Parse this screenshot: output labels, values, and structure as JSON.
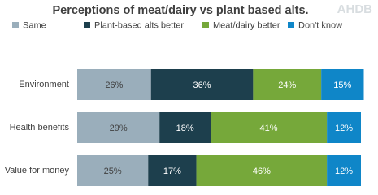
{
  "logo": "AHDB",
  "chart_data": {
    "type": "stacked-bar",
    "orientation": "horizontal",
    "title": "Perceptions of meat/dairy vs plant based alts.",
    "categories": [
      "Environment",
      "Health benefits",
      "Value for money"
    ],
    "series": [
      {
        "name": "Same",
        "color": "#9aaebb",
        "values": [
          26,
          29,
          25
        ],
        "value_labels": [
          "26%",
          "29%",
          "25%"
        ]
      },
      {
        "name": "Plant-based alts better",
        "color": "#1d3f4d",
        "values": [
          36,
          18,
          17
        ],
        "value_labels": [
          "36%",
          "18%",
          "17%"
        ]
      },
      {
        "name": "Meat/dairy better",
        "color": "#76a83a",
        "values": [
          24,
          41,
          46
        ],
        "value_labels": [
          "24%",
          "41%",
          "46%"
        ]
      },
      {
        "name": "Don't know",
        "color": "#0f86c8",
        "values": [
          15,
          12,
          12
        ],
        "value_labels": [
          "15%",
          "12%",
          "12%"
        ]
      }
    ],
    "legend": "top"
  }
}
